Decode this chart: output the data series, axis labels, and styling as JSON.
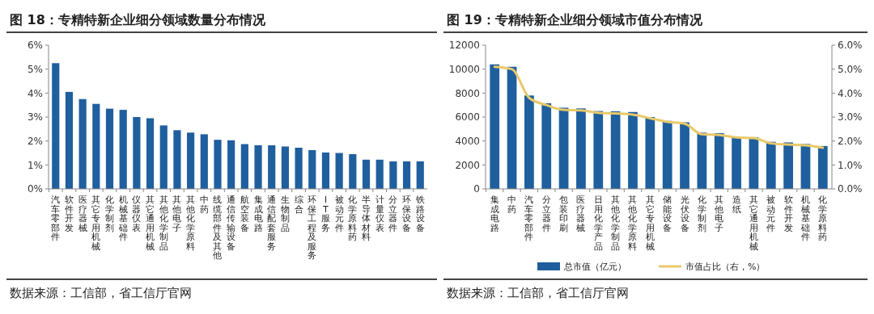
{
  "chart_data": [
    {
      "type": "bar",
      "title": "图 18：专精特新企业细分领域数量分布情况",
      "categories": [
        "汽车零部件",
        "软件开发",
        "医疗器械",
        "其它专用机械",
        "化学制剂",
        "机械基础件",
        "仪器仪表",
        "其它通用机械",
        "其他化学制品",
        "其他电子",
        "其他化学原料",
        "中药",
        "线缆部件及其他",
        "通信传输设备",
        "航空装备",
        "集成电路",
        "通信配套服务",
        "生物制品",
        "综合",
        "环保工程及服务",
        "IT服务",
        "被动元件",
        "化学原料药",
        "半导体材料",
        "计量仪表",
        "分立器件",
        "环保设备",
        "铁路设备"
      ],
      "values": [
        5.25,
        4.05,
        3.75,
        3.55,
        3.35,
        3.3,
        3.0,
        2.95,
        2.65,
        2.45,
        2.35,
        2.28,
        2.05,
        2.03,
        1.87,
        1.82,
        1.82,
        1.77,
        1.72,
        1.62,
        1.52,
        1.5,
        1.45,
        1.22,
        1.22,
        1.15,
        1.15,
        1.15
      ],
      "color": "#1f5f9e",
      "ylim": [
        0,
        6
      ],
      "yticks": [
        {
          "value": 0,
          "label": "0%"
        },
        {
          "value": 1,
          "label": "1%"
        },
        {
          "value": 2,
          "label": "2%"
        },
        {
          "value": 3,
          "label": "3%"
        },
        {
          "value": 4,
          "label": "4%"
        },
        {
          "value": 5,
          "label": "5%"
        },
        {
          "value": 6,
          "label": "6%"
        }
      ],
      "grid": false,
      "legend": false,
      "annotations": [
        "数据来源：工信部，省工信厅官网"
      ]
    },
    {
      "type": "bar",
      "title": "图 19：专精特新企业细分领域市值分布情况",
      "categories": [
        "集成电路",
        "中药",
        "汽车零部件",
        "分立器件",
        "包装印刷",
        "医疗器械",
        "日用化学产品",
        "其他化学制品",
        "其他化学原料",
        "其它专用机械",
        "储能设备",
        "光伏设备",
        "化学制剂",
        "其他电子",
        "造纸",
        "其它通用机械",
        "被动元件",
        "软件开发",
        "机械基础件",
        "化学原料药"
      ],
      "series": [
        {
          "name": "总市值（亿元）",
          "type": "bar",
          "color": "#1f5f9e",
          "values": [
            10400,
            10200,
            7800,
            7150,
            6780,
            6720,
            6500,
            6480,
            6420,
            6000,
            5680,
            5560,
            4700,
            4650,
            4320,
            4320,
            3930,
            3880,
            3750,
            3580
          ]
        },
        {
          "name": "市值占比（右，%）",
          "type": "line",
          "axis": "y2",
          "color": "#e8c96a",
          "values": [
            5.1,
            5.0,
            3.8,
            3.5,
            3.3,
            3.28,
            3.18,
            3.15,
            3.1,
            2.95,
            2.8,
            2.72,
            2.28,
            2.25,
            2.15,
            2.12,
            1.9,
            1.85,
            1.82,
            1.72
          ]
        }
      ],
      "ylim": [
        0,
        12000
      ],
      "yticks": [
        0,
        2000,
        4000,
        6000,
        8000,
        10000,
        12000
      ],
      "y2lim": [
        0,
        6
      ],
      "y2ticks": [
        {
          "value": 0,
          "label": "0.0%"
        },
        {
          "value": 1,
          "label": "1.0%"
        },
        {
          "value": 2,
          "label": "2.0%"
        },
        {
          "value": 3,
          "label": "3.0%"
        },
        {
          "value": 4,
          "label": "4.0%"
        },
        {
          "value": 5,
          "label": "5.0%"
        },
        {
          "value": 6,
          "label": "6.0%"
        }
      ],
      "grid": false,
      "legend": "bottom",
      "marker": "none",
      "annotations": [
        "数据来源：工信部，省工信厅官网"
      ]
    }
  ]
}
